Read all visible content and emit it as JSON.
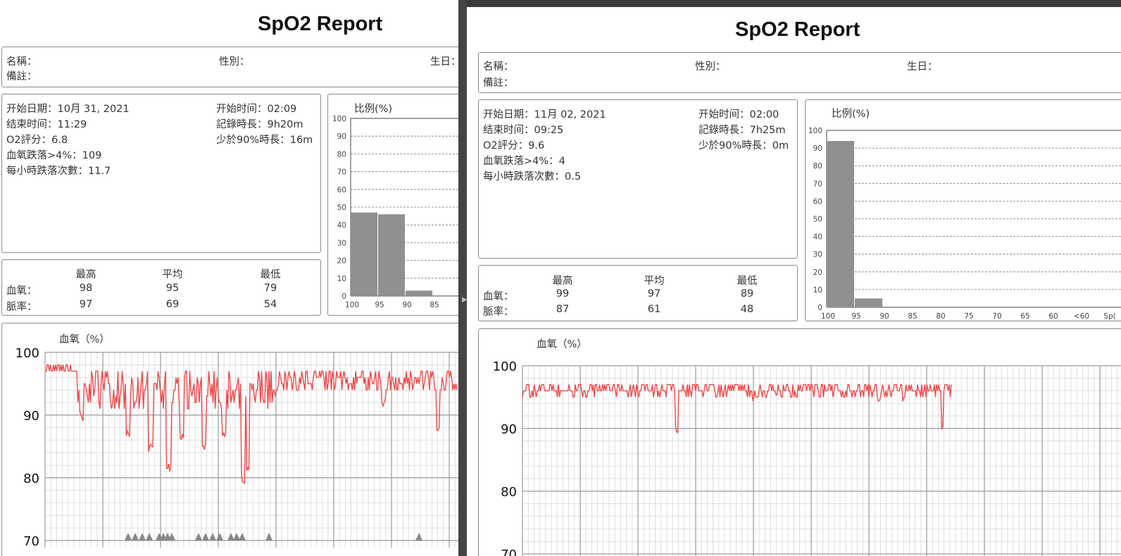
{
  "reports": [
    {
      "id": "r1",
      "title": "SpO2 Report",
      "patient": {
        "name_label": "名稱：",
        "gender_label": "性別：",
        "birthday_label": "生日：",
        "notes_label": "備註："
      },
      "session": {
        "start_date": "开始日期：10月 31, 2021",
        "end_time": "结束时间：11:29",
        "o2_score": "O2評分：6.8",
        "drops": "血氧跌落>4%：109",
        "drops_per_hour": "每小時跌落次數：11.7",
        "start_time": "开始时间：02:09",
        "duration": "記錄時長：9h20m",
        "below90": "少於90%時長：16m"
      },
      "stats": {
        "headers": [
          "最高",
          "平均",
          "最低"
        ],
        "spo2_label": "血氧：",
        "spo2": [
          "98",
          "95",
          "79"
        ],
        "pulse_label": "脈率：",
        "pulse": [
          "97",
          "69",
          "54"
        ]
      },
      "histogram": {
        "title": "比例(%)",
        "yticks": [
          "100",
          "90",
          "80",
          "70",
          "60",
          "50",
          "40",
          "30",
          "20",
          "10",
          "0"
        ],
        "xlabels": [
          "100",
          "95",
          "90",
          "85"
        ],
        "values": [
          47,
          46,
          3,
          0
        ]
      },
      "trend": {
        "title": "血氧（%）",
        "yticks": [
          "100",
          "90",
          "80",
          "70"
        ]
      }
    },
    {
      "id": "r2",
      "title": "SpO2 Report",
      "patient": {
        "name_label": "名稱：",
        "gender_label": "性別：",
        "birthday_label": "生日：",
        "notes_label": "備註："
      },
      "session": {
        "start_date": "开始日期：11月 02, 2021",
        "end_time": "结束时间：09:25",
        "o2_score": "O2評分：9.6",
        "drops": "血氧跌落>4%：4",
        "drops_per_hour": "每小時跌落次數：0.5",
        "start_time": "开始时间：02:00",
        "duration": "記錄時長：7h25m",
        "below90": "少於90%時長：0m"
      },
      "stats": {
        "headers": [
          "最高",
          "平均",
          "最低"
        ],
        "spo2_label": "血氧：",
        "spo2": [
          "99",
          "97",
          "89"
        ],
        "pulse_label": "脈率：",
        "pulse": [
          "87",
          "61",
          "48"
        ]
      },
      "histogram": {
        "title": "比例(%)",
        "yticks": [
          "100",
          "90",
          "80",
          "70",
          "60",
          "50",
          "40",
          "30",
          "20",
          "10",
          "0"
        ],
        "xlabels": [
          "100",
          "95",
          "90",
          "85",
          "80",
          "75",
          "70",
          "65",
          "60",
          "<60",
          "Sp("
        ],
        "values": [
          94,
          5,
          0,
          0,
          0,
          0,
          0,
          0,
          0,
          0
        ]
      },
      "trend": {
        "title": "血氧（%）",
        "yticks": [
          "100",
          "90",
          "80",
          "70"
        ]
      }
    }
  ],
  "colors": {
    "trace": "#f04848",
    "bar": "#8f918f",
    "grid_major": "#9a9a9a",
    "grid_minor": "#d8d8d8"
  }
}
